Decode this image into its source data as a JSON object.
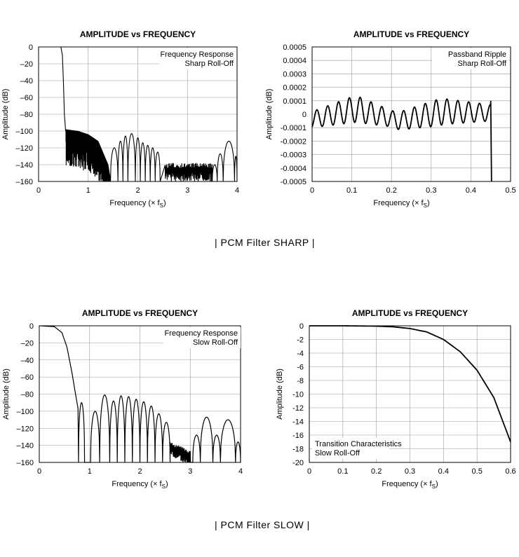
{
  "captions": {
    "sharp": "| PCM  Filter SHARP |",
    "slow": "| PCM  Filter SLOW |"
  },
  "chart_data": [
    {
      "type": "line",
      "title": "AMPLITUDE vs FREQUENCY",
      "annotation": [
        "Frequency Response",
        "Sharp Roll-Off"
      ],
      "xlabel": "Frequency (× f",
      "xlabel_sub": "S",
      "xlabel_close": ")",
      "ylabel": "Amplitude (dB)",
      "xlim": [
        0,
        4
      ],
      "ylim": [
        -160,
        0
      ],
      "xticks": [
        "0",
        "1",
        "2",
        "3",
        "4"
      ],
      "yticks": [
        "0",
        "–20",
        "–40",
        "–60",
        "–80",
        "–100",
        "–120",
        "–140",
        "–160"
      ],
      "grid": true,
      "series": [
        {
          "passband": [
            [
              0.0,
              0
            ],
            [
              0.45,
              0
            ],
            [
              0.48,
              -10
            ],
            [
              0.5,
              -40
            ],
            [
              0.52,
              -80
            ],
            [
              0.545,
              -100
            ]
          ],
          "noise_band": [
            [
              0.55,
              -98
            ],
            [
              0.8,
              -100
            ],
            [
              1.0,
              -104
            ],
            [
              1.2,
              -112
            ],
            [
              1.4,
              -140
            ],
            [
              1.45,
              -158
            ]
          ],
          "lobes": [
            [
              1.45,
              1.6,
              -120
            ],
            [
              1.6,
              1.7,
              -112
            ],
            [
              1.7,
              1.8,
              -106
            ],
            [
              1.8,
              1.95,
              -103
            ],
            [
              1.95,
              2.05,
              -108
            ],
            [
              2.05,
              2.15,
              -114
            ],
            [
              2.15,
              2.25,
              -117
            ],
            [
              2.25,
              2.35,
              -120
            ],
            [
              2.35,
              2.45,
              -125
            ]
          ],
          "noise_floor": [
            [
              2.55,
              -145
            ],
            [
              3.5,
              -145
            ]
          ],
          "tail_lobes": [
            [
              3.5,
              3.6,
              -140
            ],
            [
              3.6,
              3.72,
              -127
            ],
            [
              3.72,
              3.95,
              -112
            ],
            [
              3.95,
              4.0,
              -130
            ]
          ]
        }
      ]
    },
    {
      "type": "line",
      "title": "AMPLITUDE vs FREQUENCY",
      "annotation": [
        "Passband Ripple",
        "Sharp Roll-Off"
      ],
      "xlabel": "Frequency (× f",
      "xlabel_sub": "S",
      "xlabel_close": ")",
      "ylabel": "Amplitude (dB)",
      "xlim": [
        0,
        0.5
      ],
      "ylim": [
        -0.0005,
        0.0005
      ],
      "xticks": [
        "0",
        "0.1",
        "0.2",
        "0.3",
        "0.4",
        "0.5"
      ],
      "yticks": [
        "0.0005",
        "0.0004",
        "0.0003",
        "0.0002",
        "0.0001",
        "0",
        "-0.0001",
        "-0.0002",
        "-0.0003",
        "-0.0004",
        "-0.0005"
      ],
      "grid": true,
      "series": [
        {
          "ripple_period": 0.02733,
          "ripple_amplitude": [
            [
              0.0,
              6e-05
            ],
            [
              0.11,
              0.0001
            ],
            [
              0.2,
              6e-05
            ],
            [
              0.32,
              0.0001
            ],
            [
              0.45,
              6e-05
            ]
          ],
          "ripple_offset": [
            [
              0.0,
              -4e-05
            ],
            [
              0.11,
              4e-05
            ],
            [
              0.22,
              -5e-05
            ],
            [
              0.33,
              2e-05
            ],
            [
              0.45,
              1e-05
            ]
          ],
          "edge": [
            [
              0.45,
              0.0001
            ],
            [
              0.452,
              -0.0005
            ]
          ]
        }
      ]
    },
    {
      "type": "line",
      "title": "AMPLITUDE vs FREQUENCY",
      "annotation": [
        "Frequency Response",
        "Slow Roll-Off"
      ],
      "xlabel": "Frequency (× f",
      "xlabel_sub": "S",
      "xlabel_close": ")",
      "ylabel": "Amplitude (dB)",
      "xlim": [
        0,
        4
      ],
      "ylim": [
        -160,
        0
      ],
      "xticks": [
        "0",
        "1",
        "2",
        "3",
        "4"
      ],
      "yticks": [
        "0",
        "–20",
        "–40",
        "–60",
        "–80",
        "–100",
        "–120",
        "–140",
        "–160"
      ],
      "grid": true,
      "series": [
        {
          "rolloff": [
            [
              0.0,
              0
            ],
            [
              0.3,
              -1
            ],
            [
              0.45,
              -8
            ],
            [
              0.55,
              -25
            ],
            [
              0.65,
              -55
            ],
            [
              0.72,
              -80
            ],
            [
              0.78,
              -100
            ]
          ],
          "lobes": [
            [
              0.78,
              0.9,
              -90
            ],
            [
              0.9,
              1.02,
              -160
            ],
            [
              1.02,
              1.2,
              -100
            ],
            [
              1.2,
              1.4,
              -81
            ],
            [
              1.4,
              1.55,
              -88
            ],
            [
              1.55,
              1.7,
              -82
            ],
            [
              1.7,
              1.85,
              -83
            ],
            [
              1.85,
              2.0,
              -86
            ],
            [
              2.0,
              2.15,
              -89
            ],
            [
              2.15,
              2.3,
              -94
            ],
            [
              2.3,
              2.45,
              -103
            ],
            [
              2.45,
              2.6,
              -113
            ]
          ],
          "noise_floor": [
            [
              2.6,
              -140
            ],
            [
              3.0,
              -150
            ]
          ],
          "tail_lobes": [
            [
              3.05,
              3.2,
              -128
            ],
            [
              3.2,
              3.45,
              -107
            ],
            [
              3.45,
              3.6,
              -128
            ],
            [
              3.6,
              3.9,
              -110
            ],
            [
              3.9,
              4.0,
              -136
            ]
          ]
        }
      ]
    },
    {
      "type": "line",
      "title": "AMPLITUDE vs FREQUENCY",
      "annotation": [
        "Transition Characteristics",
        "Slow Roll-Off"
      ],
      "xlabel": "Frequency (× f",
      "xlabel_sub": "S",
      "xlabel_close": ")",
      "ylabel": "Amplitude (dB)",
      "xlim": [
        0,
        0.6
      ],
      "ylim": [
        -20,
        0
      ],
      "xticks": [
        "0",
        "0.1",
        "0.2",
        "0.3",
        "0.4",
        "0.5",
        "0.6"
      ],
      "yticks": [
        "0",
        "-2",
        "-4",
        "-6",
        "-8",
        "-10",
        "-12",
        "-14",
        "-16",
        "-18",
        "-20"
      ],
      "grid": true,
      "series": [
        {
          "x": [
            0,
            0.1,
            0.2,
            0.25,
            0.3,
            0.35,
            0.4,
            0.45,
            0.5,
            0.55,
            0.6
          ],
          "y": [
            0,
            0,
            -0.05,
            -0.15,
            -0.4,
            -0.9,
            -2.0,
            -3.8,
            -6.5,
            -10.5,
            -17
          ]
        }
      ]
    }
  ]
}
